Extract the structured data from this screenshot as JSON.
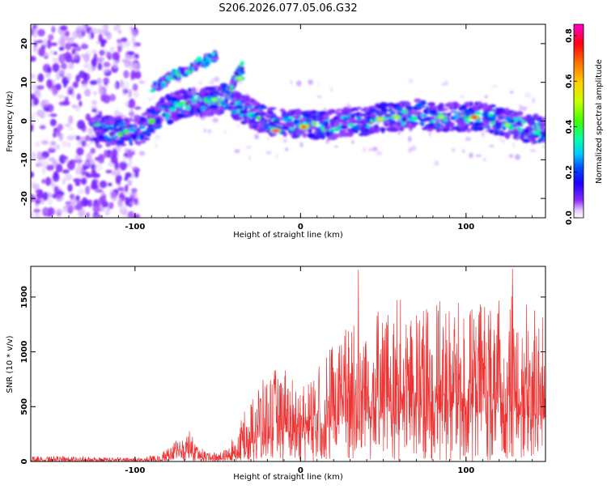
{
  "title": "S206.2026.077.05.06.G32",
  "chart_data": [
    {
      "type": "heatmap",
      "title": "",
      "xlabel": "Height of straight line (km)",
      "ylabel": "Frequency (Hz)",
      "xlim": [
        -163,
        148
      ],
      "ylim": [
        -25,
        25
      ],
      "xticks": [
        -100,
        0,
        100
      ],
      "yticks": [
        -20,
        -10,
        0,
        10,
        20
      ],
      "xtick_labels": [
        "-100",
        "0",
        "100"
      ],
      "ytick_labels": [
        "-20",
        "-10",
        "0",
        "10",
        "20"
      ],
      "colorbar": {
        "label": "Normalized spectral amplitude",
        "range": [
          0,
          0.85
        ],
        "ticks": [
          0.0,
          0.2,
          0.4,
          0.6,
          0.8
        ],
        "tick_labels": [
          "0.0",
          "0.2",
          "0.4",
          "0.6",
          "0.8"
        ],
        "colormap": [
          "#ffffff",
          "#c8a0ff",
          "#6a00ff",
          "#0000ff",
          "#00d0ff",
          "#00ff80",
          "#a0ff00",
          "#ffd000",
          "#ff6000",
          "#ff0000",
          "#ff00c0"
        ]
      },
      "ridge": {
        "x": [
          -163,
          -140,
          -120,
          -105,
          -95,
          -85,
          -75,
          -65,
          -55,
          -45,
          -38,
          -30,
          -20,
          -10,
          0,
          10,
          20,
          30,
          40,
          50,
          60,
          70,
          80,
          90,
          100,
          110,
          120,
          130,
          140,
          148
        ],
        "y": [
          0,
          -1,
          -2,
          -3,
          -2,
          2,
          4,
          5,
          5,
          6,
          4,
          2,
          0,
          0,
          -1,
          -1,
          -1,
          0,
          0,
          1,
          1,
          2,
          1,
          1,
          1,
          1,
          0,
          -1,
          -2,
          -3
        ]
      },
      "branches": [
        {
          "x": [
            -90,
            -80,
            -70,
            -60,
            -55,
            -50
          ],
          "y": [
            8,
            11,
            13,
            15,
            16,
            17
          ]
        },
        {
          "x": [
            -45,
            -42,
            -38,
            -35
          ],
          "y": [
            6,
            9,
            12,
            14
          ]
        }
      ],
      "peaks": [
        {
          "x": -15,
          "y": -2.5,
          "amplitude": 0.85
        },
        {
          "x": 2,
          "y": -1.5,
          "amplitude": 0.75
        },
        {
          "x": 105,
          "y": 1,
          "amplitude": 0.8
        },
        {
          "x": 48,
          "y": 0.5,
          "amplitude": 0.6
        },
        {
          "x": 58,
          "y": 1,
          "amplitude": 0.55
        },
        {
          "x": 85,
          "y": 1,
          "amplitude": 0.55
        },
        {
          "x": -52,
          "y": 5.5,
          "amplitude": 0.5
        },
        {
          "x": -37,
          "y": 11,
          "amplitude": 0.55
        },
        {
          "x": 125,
          "y": -1,
          "amplitude": 0.5
        }
      ]
    },
    {
      "type": "line",
      "title": "",
      "xlabel": "Height of straight line (km)",
      "ylabel": "SNR (10 * v/v)",
      "xlim": [
        -163,
        148
      ],
      "ylim": [
        0,
        1780
      ],
      "xticks": [
        -100,
        0,
        100
      ],
      "yticks": [
        0,
        500,
        1000,
        1500
      ],
      "xtick_labels": [
        "-100",
        "0",
        "100"
      ],
      "ytick_labels": [
        "0",
        "500",
        "1000",
        "1500"
      ],
      "series": [
        {
          "name": "SNR",
          "color": "#ee3333",
          "envelope_x": [
            -163,
            -140,
            -120,
            -100,
            -85,
            -75,
            -68,
            -62,
            -55,
            -45,
            -38,
            -30,
            -20,
            -10,
            0,
            10,
            20,
            30,
            40,
            50,
            60,
            70,
            80,
            90,
            100,
            110,
            120,
            130,
            140,
            148
          ],
          "envelope_peak": [
            50,
            50,
            40,
            35,
            60,
            200,
            300,
            150,
            80,
            110,
            300,
            600,
            800,
            900,
            650,
            850,
            1100,
            1300,
            1420,
            1350,
            1500,
            1350,
            1450,
            1500,
            1400,
            1480,
            1500,
            1550,
            1450,
            1350
          ],
          "envelope_base": [
            5,
            5,
            5,
            5,
            10,
            40,
            80,
            40,
            15,
            20,
            80,
            150,
            200,
            250,
            250,
            280,
            320,
            350,
            380,
            380,
            400,
            400,
            400,
            400,
            400,
            400,
            400,
            400,
            380,
            380
          ],
          "max_points": [
            {
              "x": 35,
              "y": 1750
            },
            {
              "x": 128,
              "y": 1760
            }
          ]
        }
      ]
    }
  ]
}
